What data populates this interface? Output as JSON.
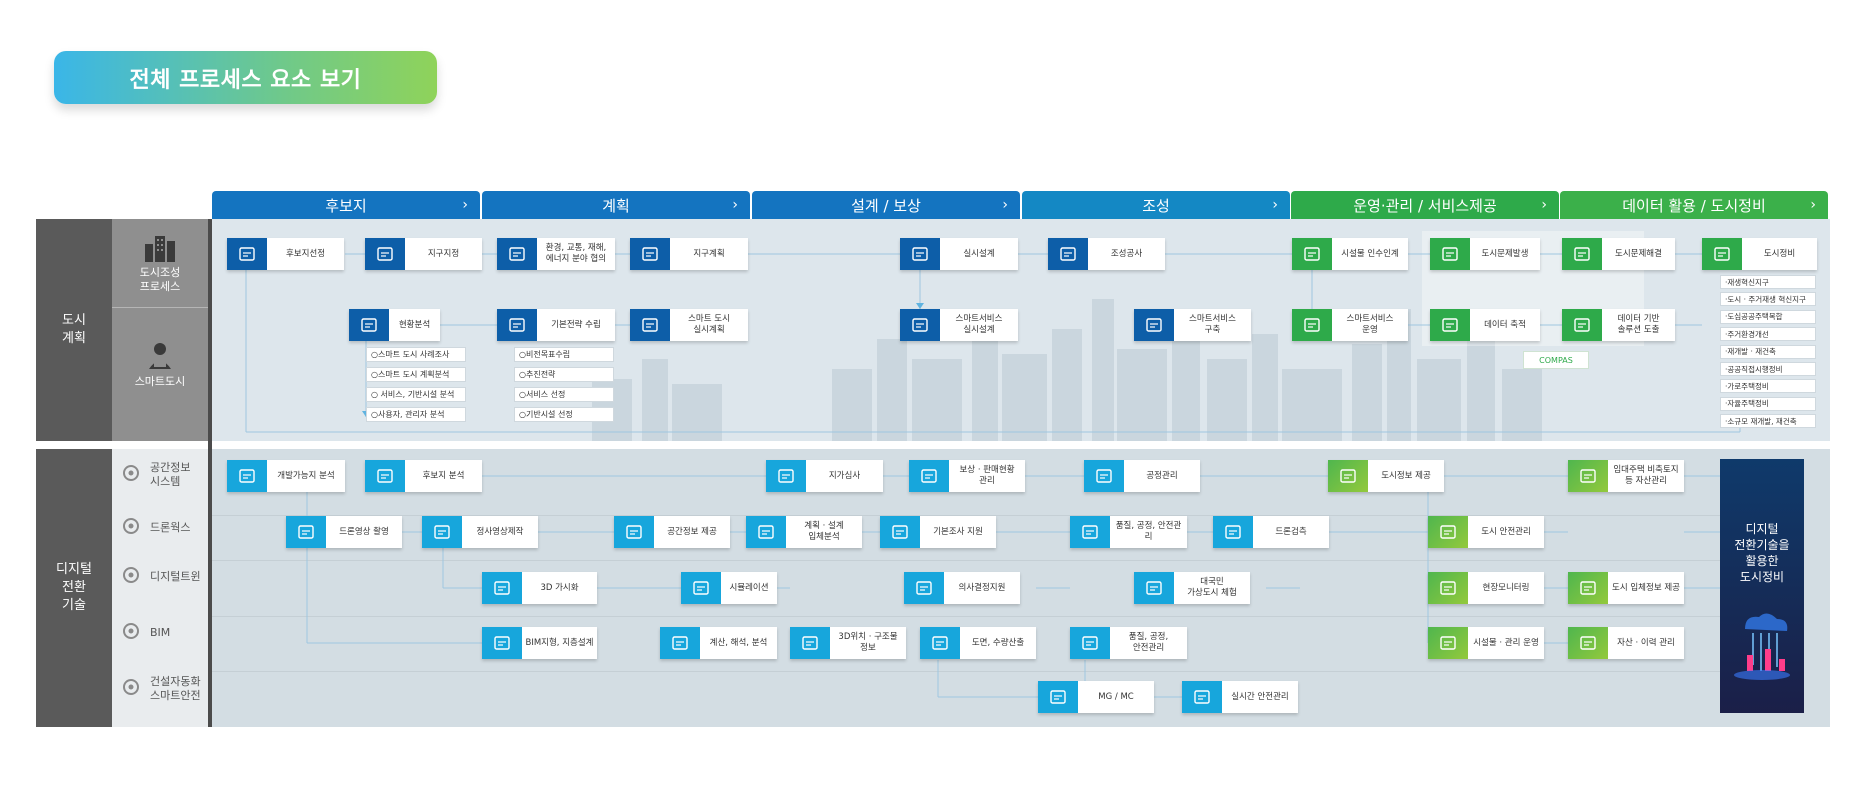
{
  "title": "전체 프로세스 요소 보기",
  "colors": {
    "dark_blue": "#0d5ea8",
    "cyan": "#17a6dc",
    "green": "#2eaa4a",
    "lime": "#8fd35a"
  },
  "phases": [
    {
      "label": "후보지",
      "color": "#1474c0"
    },
    {
      "label": "계획",
      "color": "#1474c0"
    },
    {
      "label": "설계 / 보상",
      "color": "#1474c0"
    },
    {
      "label": "조성",
      "color": "#1488c4"
    },
    {
      "label": "운영·관리 / 서비스제공",
      "color": "#2eaa4a"
    },
    {
      "label": "데이터 활용 / 도시정비",
      "color": "#3bb04a"
    }
  ],
  "left": {
    "urban_plan": "도시\n계획",
    "digital": "디지털\n전환\n기술",
    "rows_top": [
      {
        "label": "도시조성\n프로세스",
        "icon": "building-icon"
      },
      {
        "label": "스마트도시",
        "icon": "person-computer-icon"
      }
    ],
    "rows_bottom": [
      {
        "label": "공간정보\n시스템",
        "icon": "satellite-icon"
      },
      {
        "label": "드론웍스",
        "icon": "drone-icon"
      },
      {
        "label": "디지털트윈",
        "icon": "helmet-icon"
      },
      {
        "label": "BIM",
        "icon": "bim-icon"
      },
      {
        "label": "건설자동화\n스마트안전",
        "icon": "gear-icon"
      }
    ]
  },
  "top_nodes": [
    {
      "text": "후보지선정",
      "icon": "target-icon"
    },
    {
      "text": "지구지정",
      "icon": "map-pin-icon"
    },
    {
      "text": "환경, 교통, 재해,\n에너지 분야 협의",
      "icon": "gears-icon"
    },
    {
      "text": "지구계획",
      "icon": "blueprint-icon"
    },
    {
      "text": "실시설계",
      "icon": "compass-icon"
    },
    {
      "text": "조성공사",
      "icon": "crane-icon"
    },
    {
      "text": "시설물 인수인계",
      "icon": "handover-icon"
    },
    {
      "text": "도시문제발생",
      "icon": "alert-screen-icon"
    },
    {
      "text": "도시문제해결",
      "icon": "solve-screen-icon"
    },
    {
      "text": "도시정비",
      "icon": "city-renew-icon"
    },
    {
      "text": "현황분석",
      "icon": "analysis-icon"
    },
    {
      "text": "기본전략 수립",
      "icon": "strategy-icon"
    },
    {
      "text": "스마트 도시\n실시계획",
      "icon": "plan-icon"
    },
    {
      "text": "스마트서비스\n실시설계",
      "icon": "design-icon"
    },
    {
      "text": "스마트서비스\n구축",
      "icon": "build-icon"
    },
    {
      "text": "스마트서비스\n운영",
      "icon": "operate-icon"
    },
    {
      "text": "데이터 축적",
      "icon": "data-store-icon"
    },
    {
      "text": "데이터 기반\n솔루션 도출",
      "icon": "solution-icon"
    }
  ],
  "analysis_subs": [
    "○스마트 도시 사례조사",
    "○스마트 도시 계획분석",
    "○ 서비스, 기반시설 분석",
    "○사용자, 관리자 분석"
  ],
  "strategy_subs": [
    "○비전목표수립",
    "○추진전략",
    "○서비스 선정",
    "○기반시설 선정"
  ],
  "compas": "COMPAS",
  "renewal_subs": [
    "·재생혁신지구",
    "·도시 · 주거재생 혁신지구",
    "·도심공공주택복합",
    "·주거환경개선",
    "·재개발 · 재건축",
    "·공공직접시행정비",
    "·가로주택정비",
    "·자율주택정비",
    "·소규모 재개발, 재건축"
  ],
  "bottom_nodes": [
    {
      "text": "개발가능지 분석",
      "icon": "terrain-icon"
    },
    {
      "text": "후보지 분석",
      "icon": "doc-edit-icon"
    },
    {
      "text": "지가심사",
      "icon": "land-price-icon"
    },
    {
      "text": "보상 · 판매현황\n관리",
      "icon": "compensation-icon"
    },
    {
      "text": "공정관리",
      "icon": "process-icon"
    },
    {
      "text": "도시정보 제공",
      "icon": "info-icon"
    },
    {
      "text": "임대주택 비축토지\n등 자산관리",
      "icon": "asset-icon"
    },
    {
      "text": "드론영상 촬영",
      "icon": "drone-cam-icon"
    },
    {
      "text": "정사영상제작",
      "icon": "ortho-icon"
    },
    {
      "text": "공간정보 제공",
      "icon": "spatial-icon"
    },
    {
      "text": "계획 · 설계\n입체분석",
      "icon": "3d-analysis-icon"
    },
    {
      "text": "기본조사 지원",
      "icon": "survey-icon"
    },
    {
      "text": "품질, 공정, 안전관리",
      "icon": "quality-icon"
    },
    {
      "text": "드론검측",
      "icon": "drone-inspect-icon"
    },
    {
      "text": "도시 안전관리",
      "icon": "safety-icon"
    },
    {
      "text": "3D 가시화",
      "icon": "3d-view-icon"
    },
    {
      "text": "시뮬레이션",
      "icon": "simulation-icon"
    },
    {
      "text": "의사결정지원",
      "icon": "decision-icon"
    },
    {
      "text": "대국민\n가상도시 체험",
      "icon": "vr-icon"
    },
    {
      "text": "현장모니터링",
      "icon": "monitor-icon"
    },
    {
      "text": "도시 입체정보 제공",
      "icon": "3d-info-icon"
    },
    {
      "text": "BIM지형, 지층설계",
      "icon": "bim-terrain-icon"
    },
    {
      "text": "계산, 해석, 분석",
      "icon": "calc-icon"
    },
    {
      "text": "3D위치 · 구조물\n정보",
      "icon": "3d-position-icon"
    },
    {
      "text": "도면, 수량산출",
      "icon": "drawing-icon"
    },
    {
      "text": "품질, 공정,\n안전관리",
      "icon": "quality-icon"
    },
    {
      "text": "시설물 · 관리 운영",
      "icon": "facility-icon"
    },
    {
      "text": "자산 · 이력 관리",
      "icon": "history-icon"
    },
    {
      "text": "MG / MC",
      "icon": "machine-icon"
    },
    {
      "text": "실시간 안전관리",
      "icon": "realtime-icon"
    }
  ],
  "digital_box": "디지털\n전환기술을\n활용한\n도시정비"
}
